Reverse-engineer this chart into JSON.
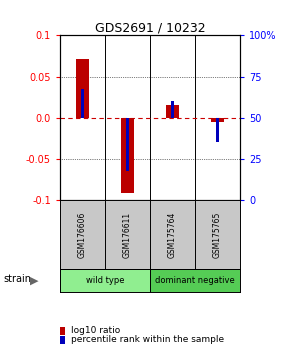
{
  "title": "GDS2691 / 10232",
  "samples": [
    "GSM176606",
    "GSM176611",
    "GSM175764",
    "GSM175765"
  ],
  "log10_ratio": [
    0.071,
    -0.091,
    0.015,
    -0.005
  ],
  "percentile_rank": [
    0.035,
    -0.065,
    0.02,
    -0.03
  ],
  "ylim": [
    -0.1,
    0.1
  ],
  "yticks_left": [
    -0.1,
    -0.05,
    0.0,
    0.05,
    0.1
  ],
  "yticks_right_labels": [
    "0",
    "25",
    "50",
    "75",
    "100%"
  ],
  "yticks_right_vals": [
    -0.1,
    -0.05,
    0.0,
    0.05,
    0.1
  ],
  "groups": [
    {
      "label": "wild type",
      "cols": [
        0,
        1
      ],
      "color": "#90EE90"
    },
    {
      "label": "dominant negative",
      "cols": [
        2,
        3
      ],
      "color": "#55CC55"
    }
  ],
  "red_color": "#BB0000",
  "blue_color": "#0000BB",
  "zero_line_color": "#CC0000",
  "label_bg": "#C8C8C8",
  "legend_items": [
    {
      "label": "log10 ratio",
      "color": "#BB0000"
    },
    {
      "label": "percentile rank within the sample",
      "color": "#0000BB"
    }
  ],
  "red_bar_width": 0.28,
  "blue_bar_width": 0.08
}
